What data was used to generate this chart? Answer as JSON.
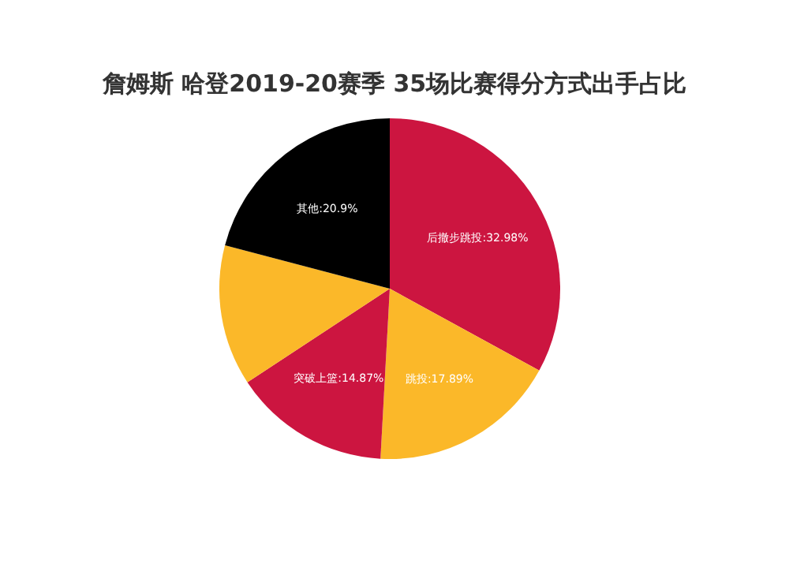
{
  "chart_data": {
    "type": "pie",
    "title": "詹姆斯 哈登2019-20赛季 35场比赛得分方式出手占比",
    "categories": [
      "后撤步跳投",
      "跳投",
      "突破上篮",
      null,
      "其他"
    ],
    "values": [
      32.98,
      17.89,
      14.87,
      13.36,
      20.9
    ],
    "value_labels": [
      "32.98%",
      "17.89%",
      "14.87%",
      null,
      "20.9%"
    ],
    "colors": [
      "#cc1540",
      "#fbb829",
      "#cc1540",
      "#fbb829",
      "#000000"
    ],
    "legend": false
  }
}
